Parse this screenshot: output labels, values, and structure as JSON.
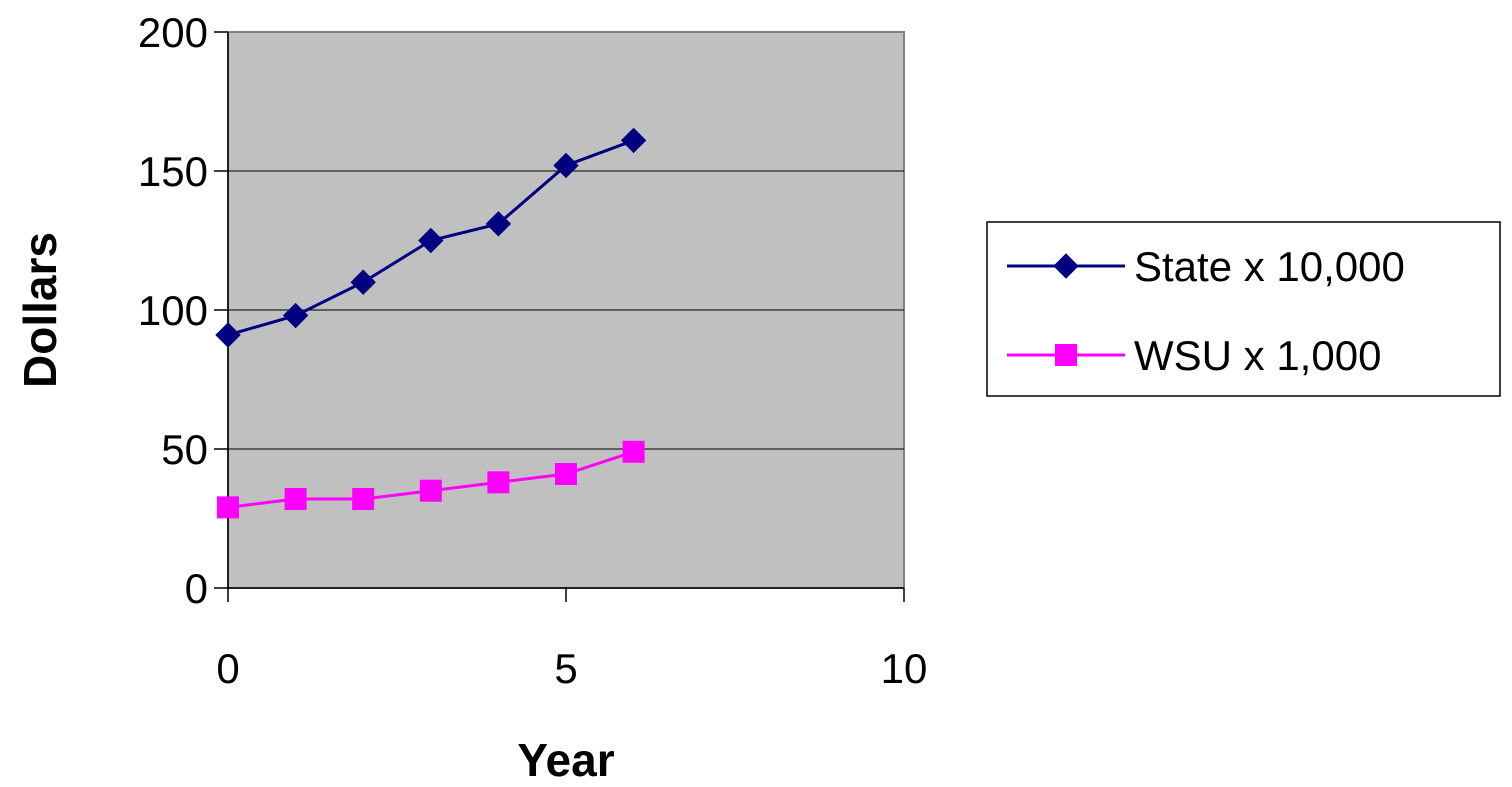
{
  "chart_data": {
    "type": "line",
    "title": "",
    "xlabel": "Year",
    "ylabel": "Dollars",
    "xlim": [
      0,
      10
    ],
    "ylim": [
      0,
      200
    ],
    "xticks": [
      0,
      5,
      10
    ],
    "yticks": [
      0,
      50,
      100,
      150,
      200
    ],
    "grid": "horizontal",
    "legend_position": "right",
    "plot_background": "#c0c0c0",
    "series": [
      {
        "name": "State x 10,000",
        "color": "#000080",
        "marker": "diamond",
        "x": [
          0,
          1,
          2,
          3,
          4,
          5,
          6
        ],
        "values": [
          91,
          98,
          110,
          125,
          131,
          152,
          161
        ]
      },
      {
        "name": "WSU x 1,000",
        "color": "#ff00ff",
        "marker": "square",
        "x": [
          0,
          1,
          2,
          3,
          4,
          5,
          6
        ],
        "values": [
          29,
          32,
          32,
          35,
          38,
          41,
          49
        ]
      }
    ]
  }
}
